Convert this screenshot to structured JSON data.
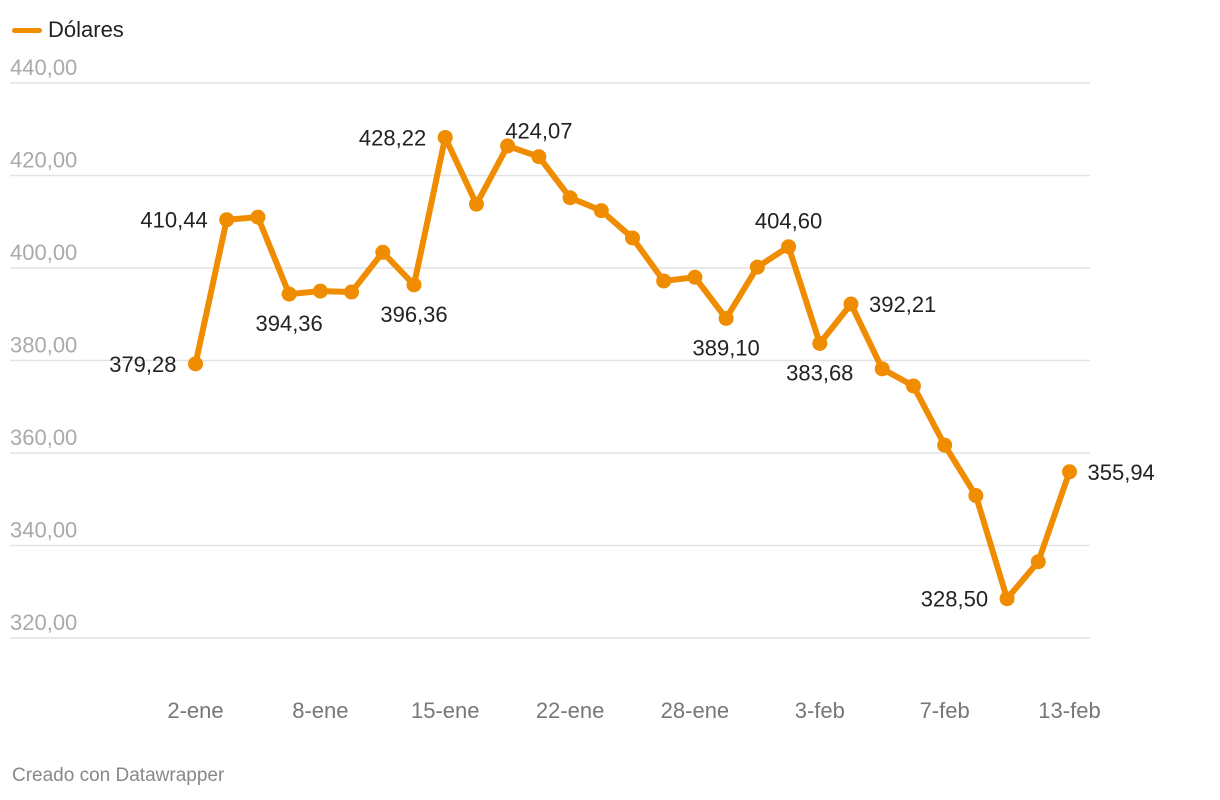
{
  "legend": {
    "label": "Dólares",
    "color": "#F08C00"
  },
  "credit": "Creado con Datawrapper",
  "chart_data": {
    "type": "line",
    "series": [
      {
        "name": "Dólares",
        "color": "#F08C00",
        "values": [
          379.28,
          410.44,
          411.0,
          394.36,
          395.0,
          394.8,
          403.4,
          396.36,
          428.22,
          413.8,
          426.4,
          424.07,
          415.2,
          412.4,
          406.5,
          397.2,
          398.0,
          389.1,
          400.2,
          404.6,
          383.68,
          392.21,
          378.2,
          374.5,
          361.7,
          350.8,
          328.5,
          336.5,
          355.94
        ]
      }
    ],
    "x_tick_labels": [
      {
        "index": 0,
        "label": "2-ene"
      },
      {
        "index": 4,
        "label": "8-ene"
      },
      {
        "index": 8,
        "label": "15-ene"
      },
      {
        "index": 12,
        "label": "22-ene"
      },
      {
        "index": 16,
        "label": "28-ene"
      },
      {
        "index": 20,
        "label": "3-feb"
      },
      {
        "index": 24,
        "label": "7-feb"
      },
      {
        "index": 28,
        "label": "13-feb"
      }
    ],
    "y_ticks": [
      "320,00",
      "340,00",
      "360,00",
      "380,00",
      "400,00",
      "420,00",
      "440,00"
    ],
    "y_tick_values": [
      320,
      340,
      360,
      380,
      400,
      420,
      440
    ],
    "ylim": [
      320,
      440
    ],
    "grid": true,
    "legend_position": "top-left",
    "annotations": [
      {
        "index": 0,
        "text": "379,28",
        "side": "left"
      },
      {
        "index": 1,
        "text": "410,44",
        "side": "left"
      },
      {
        "index": 3,
        "text": "394,36",
        "side": "below"
      },
      {
        "index": 7,
        "text": "396,36",
        "side": "below"
      },
      {
        "index": 8,
        "text": "428,22",
        "side": "left"
      },
      {
        "index": 11,
        "text": "424,07",
        "side": "above"
      },
      {
        "index": 17,
        "text": "389,10",
        "side": "below"
      },
      {
        "index": 19,
        "text": "404,60",
        "side": "above"
      },
      {
        "index": 20,
        "text": "383,68",
        "side": "below"
      },
      {
        "index": 21,
        "text": "392,21",
        "side": "right"
      },
      {
        "index": 26,
        "text": "328,50",
        "side": "left"
      },
      {
        "index": 28,
        "text": "355,94",
        "side": "right"
      }
    ]
  }
}
